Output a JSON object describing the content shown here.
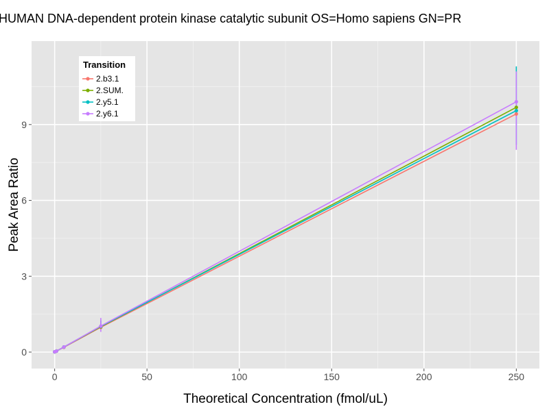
{
  "chart_data": {
    "type": "line",
    "title": "HUMAN DNA-dependent protein kinase catalytic subunit OS=Homo sapiens GN=PR",
    "xlabel": "Theoretical Concentration (fmol/uL)",
    "ylabel": "Peak Area Ratio",
    "xlim": [
      -12.5,
      262.5
    ],
    "ylim": [
      -0.65,
      12.3
    ],
    "x_ticks": [
      0,
      50,
      100,
      150,
      200,
      250
    ],
    "y_ticks": [
      0,
      3,
      6,
      9
    ],
    "grid": true,
    "legend": {
      "title": "Transition",
      "placement": "top-left"
    },
    "x": [
      0,
      1,
      5,
      25,
      250
    ],
    "series": [
      {
        "name": "2.b3.1",
        "color": "#F8766D",
        "values": [
          0.01,
          0.04,
          0.19,
          0.98,
          9.42
        ],
        "error_bars": [
          null,
          null,
          null,
          null,
          null
        ]
      },
      {
        "name": "2.SUM.",
        "color": "#7CAE00",
        "values": [
          0.01,
          0.04,
          0.2,
          1.0,
          9.68
        ],
        "error_bars": [
          null,
          null,
          null,
          null,
          null
        ]
      },
      {
        "name": "2.y5.1",
        "color": "#00BFC4",
        "values": [
          0.01,
          0.04,
          0.2,
          1.02,
          9.55
        ],
        "error_bars": [
          null,
          null,
          null,
          [
            0.9,
            1.25
          ],
          [
            8.2,
            11.3
          ]
        ]
      },
      {
        "name": "2.y6.1",
        "color": "#C77CFF",
        "values": [
          0.01,
          0.04,
          0.2,
          1.03,
          9.9
        ],
        "error_bars": [
          null,
          null,
          null,
          [
            0.8,
            1.35
          ],
          [
            8.0,
            11.1
          ]
        ]
      }
    ]
  }
}
